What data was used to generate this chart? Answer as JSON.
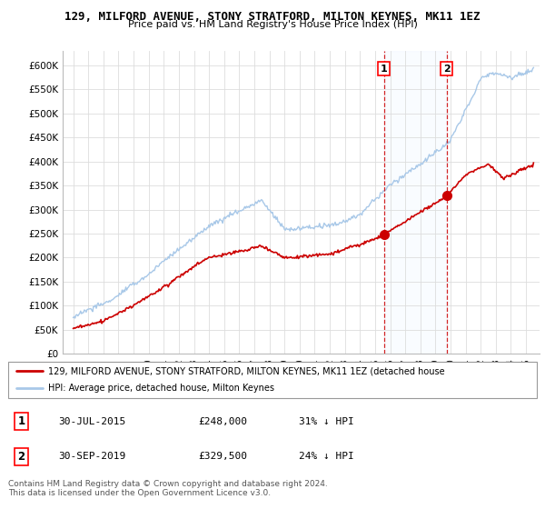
{
  "title_line1": "129, MILFORD AVENUE, STONY STRATFORD, MILTON KEYNES, MK11 1EZ",
  "title_line2": "Price paid vs. HM Land Registry's House Price Index (HPI)",
  "ylabel_ticks": [
    "£0",
    "£50K",
    "£100K",
    "£150K",
    "£200K",
    "£250K",
    "£300K",
    "£350K",
    "£400K",
    "£450K",
    "£500K",
    "£550K",
    "£600K"
  ],
  "ytick_vals": [
    0,
    50000,
    100000,
    150000,
    200000,
    250000,
    300000,
    350000,
    400000,
    450000,
    500000,
    550000,
    600000
  ],
  "ylim": [
    0,
    630000
  ],
  "hpi_color": "#a8c8e8",
  "price_color": "#cc0000",
  "legend_line1": "129, MILFORD AVENUE, STONY STRATFORD, MILTON KEYNES, MK11 1EZ (detached house",
  "legend_line2": "HPI: Average price, detached house, Milton Keynes",
  "footer": "Contains HM Land Registry data © Crown copyright and database right 2024.\nThis data is licensed under the Open Government Licence v3.0.",
  "background_color": "#ffffff",
  "grid_color": "#dddddd",
  "span_color": "#ddeeff"
}
